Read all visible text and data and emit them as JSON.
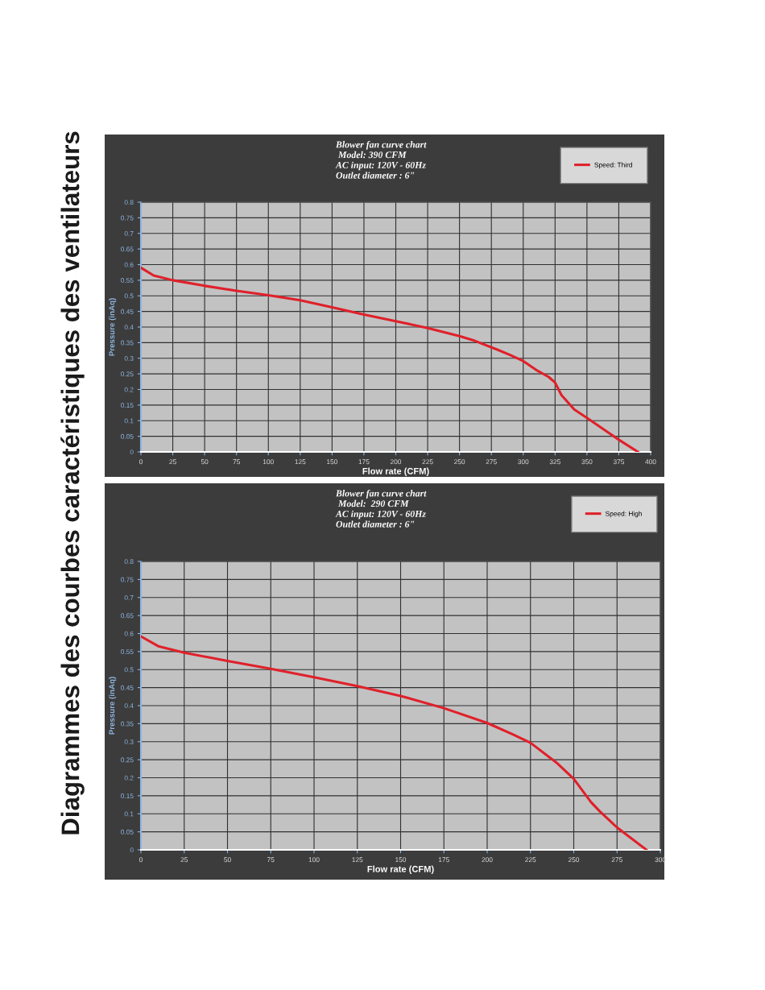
{
  "chart_data": [
    {
      "type": "line",
      "title": "Blower fan curve chart\n Model: 390 CFM\nAC input: 120V - 60Hz\nOutlet diameter : 6\"",
      "xlabel": "Flow rate (CFM)",
      "ylabel": "Pressure (inAq)",
      "annotations": [
        "Diagrammes des courbes caractéristiques des ventilateurs"
      ],
      "xlim": [
        0,
        400
      ],
      "xticks": [
        0,
        25,
        50,
        75,
        100,
        125,
        150,
        175,
        200,
        225,
        250,
        275,
        300,
        325,
        350,
        375,
        400
      ],
      "ylim": [
        0,
        0.8
      ],
      "yticks": [
        0,
        0.05,
        0.1,
        0.15,
        0.2,
        0.25,
        0.3,
        0.35,
        0.4,
        0.45,
        0.5,
        0.55,
        0.6,
        0.65,
        0.7,
        0.75,
        0.8
      ],
      "grid": true,
      "legend": "top right",
      "marker": "none",
      "line_style": "solid",
      "series": [
        {
          "name": "Speed: Third",
          "color": "#e0202a",
          "x": [
            0,
            10,
            25,
            50,
            75,
            100,
            125,
            150,
            175,
            200,
            225,
            250,
            262,
            280,
            290,
            300,
            310,
            320,
            325,
            330,
            340,
            350,
            375,
            390
          ],
          "values": [
            0.59,
            0.565,
            0.55,
            0.532,
            0.516,
            0.502,
            0.486,
            0.463,
            0.44,
            0.419,
            0.397,
            0.371,
            0.356,
            0.327,
            0.31,
            0.291,
            0.263,
            0.24,
            0.222,
            0.182,
            0.136,
            0.109,
            0.039,
            0
          ]
        }
      ]
    },
    {
      "type": "line",
      "title": "Blower fan curve chart\n Model:  290 CFM\nAC input: 120V - 60Hz\nOutlet diameter : 6\"",
      "xlabel": "Flow rate (CFM)",
      "ylabel": "Pressure (inAq)",
      "xlim": [
        0,
        300
      ],
      "xticks": [
        0,
        25,
        50,
        75,
        100,
        125,
        150,
        175,
        200,
        225,
        250,
        275,
        300
      ],
      "ylim": [
        0,
        0.8
      ],
      "yticks": [
        0,
        0.05,
        0.1,
        0.15,
        0.2,
        0.25,
        0.3,
        0.35,
        0.4,
        0.45,
        0.5,
        0.55,
        0.6,
        0.65,
        0.7,
        0.75,
        0.8
      ],
      "grid": true,
      "legend": "top right",
      "marker": "none",
      "line_style": "solid",
      "series": [
        {
          "name": "Speed: High",
          "color": "#e0202a",
          "x": [
            0,
            10,
            25,
            50,
            75,
            100,
            125,
            150,
            175,
            200,
            215,
            225,
            240,
            250,
            260,
            265,
            275,
            292
          ],
          "values": [
            0.592,
            0.565,
            0.547,
            0.524,
            0.502,
            0.479,
            0.454,
            0.427,
            0.393,
            0.352,
            0.32,
            0.297,
            0.242,
            0.197,
            0.132,
            0.107,
            0.062,
            0
          ]
        }
      ]
    }
  ]
}
